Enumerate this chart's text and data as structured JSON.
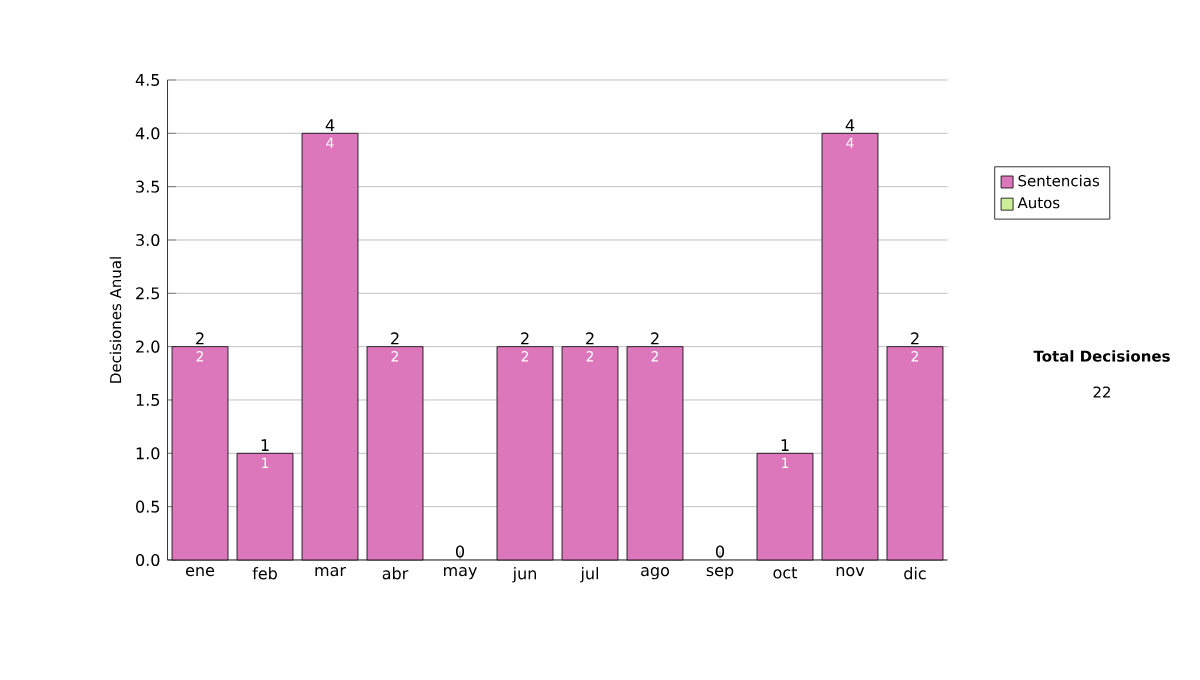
{
  "chart_data": {
    "type": "bar",
    "stacked": true,
    "ylabel": "Decisiones Anual",
    "categories": [
      "ene",
      "feb",
      "mar",
      "abr",
      "may",
      "jun",
      "jul",
      "ago",
      "sep",
      "oct",
      "nov",
      "dic"
    ],
    "series": [
      {
        "name": "Sentencias",
        "color": "#dd77bb",
        "values": [
          2,
          1,
          4,
          2,
          0,
          2,
          2,
          2,
          0,
          1,
          4,
          2
        ],
        "value_labels": [
          "2",
          "1",
          "4",
          "2",
          null,
          "2",
          "2",
          "2",
          null,
          "1",
          "4",
          "2"
        ]
      },
      {
        "name": "Autos",
        "color": "#ccee99",
        "values": [
          0,
          0,
          0,
          0,
          0,
          0,
          0,
          0,
          0,
          0,
          0,
          0
        ]
      }
    ],
    "totals": [
      "2",
      "1",
      "4",
      "2",
      "0",
      "2",
      "2",
      "2",
      "0",
      "1",
      "4",
      "2"
    ],
    "ylim": [
      0,
      4.5
    ],
    "yticks": [
      {
        "value": 0,
        "label": "0.0"
      },
      {
        "value": 0.5,
        "label": "0.5"
      },
      {
        "value": 1,
        "label": "1.0"
      },
      {
        "value": 1.5,
        "label": "1.5"
      },
      {
        "value": 2,
        "label": "2.0"
      },
      {
        "value": 2.5,
        "label": "2.5"
      },
      {
        "value": 3,
        "label": "3.0"
      },
      {
        "value": 3.5,
        "label": "3.5"
      },
      {
        "value": 4,
        "label": "4.0"
      },
      {
        "value": 4.5,
        "label": "4.5"
      }
    ],
    "grid": "y",
    "legend": "right",
    "annotations": [
      "Total Decisiones",
      "22"
    ]
  }
}
